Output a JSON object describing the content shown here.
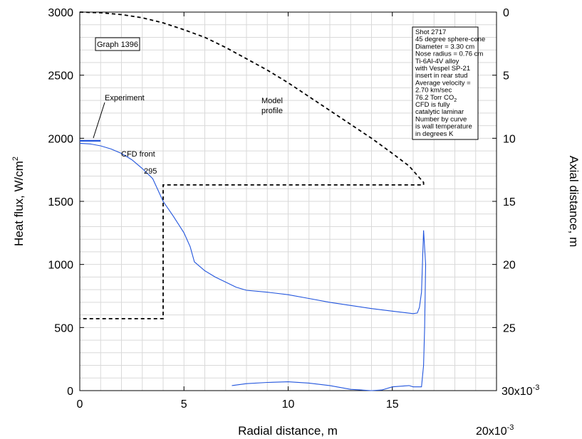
{
  "chart_data": {
    "type": "line",
    "graph_label": "Graph 1396",
    "xlabel": "Radial distance, m",
    "ylabel_left": "Heat flux, W/cm",
    "ylabel_left_sup": "2",
    "ylabel_right": "Axial distance, m",
    "x_multiplier": "20x10",
    "x_multiplier_exp": "-3",
    "y_right_multiplier": "30x10",
    "y_right_multiplier_exp": "-3",
    "xlim": [
      0,
      0.02
    ],
    "ylim_left": [
      0,
      3000
    ],
    "ylim_right": [
      0.03,
      0
    ],
    "x_ticks": [
      {
        "v": 0,
        "label": "0"
      },
      {
        "v": 0.005,
        "label": "5"
      },
      {
        "v": 0.01,
        "label": "10"
      },
      {
        "v": 0.015,
        "label": "15"
      }
    ],
    "y_left_ticks": [
      {
        "v": 0,
        "label": "0"
      },
      {
        "v": 500,
        "label": "500"
      },
      {
        "v": 1000,
        "label": "1000"
      },
      {
        "v": 1500,
        "label": "1500"
      },
      {
        "v": 2000,
        "label": "2000"
      },
      {
        "v": 2500,
        "label": "2500"
      },
      {
        "v": 3000,
        "label": "3000"
      }
    ],
    "y_right_ticks": [
      {
        "v": 0,
        "label": "0"
      },
      {
        "v": 0.005,
        "label": "5"
      },
      {
        "v": 0.01,
        "label": "10"
      },
      {
        "v": 0.015,
        "label": "15"
      },
      {
        "v": 0.02,
        "label": "20"
      },
      {
        "v": 0.025,
        "label": "25"
      }
    ],
    "annotations": {
      "experiment": "Experiment",
      "cfd_front": "CFD front",
      "wall_temp": "295",
      "model_line1": "Model",
      "model_line2": "profile"
    },
    "info_box": [
      "Shot 2717",
      "45 degree sphere-cone",
      "Diameter = 3.30 cm",
      "Nose radius = 0.76 cm",
      "Ti-6Al-4V alloy",
      "  with Vespel SP-21",
      "  insert in rear stud",
      "Average velocity =",
      "  2.70 km/sec",
      "76.2 Torr CO",
      "CFD is fully",
      "  catalytic laminar",
      "Number by curve",
      "  is wall temperature",
      "  in degrees K"
    ],
    "info_box_sub": "2",
    "colors": {
      "cfd": "#2255dd",
      "experiment": "#2255dd",
      "model": "#000000"
    },
    "series": [
      {
        "axis": "right",
        "style": "dashed",
        "points": [
          [
            0,
            0
          ],
          [
            0.001,
            5e-05
          ],
          [
            0.002,
            0.0002
          ],
          [
            0.003,
            0.00045
          ],
          [
            0.004,
            0.00085
          ],
          [
            0.005,
            0.0014
          ],
          [
            0.006,
            0.002
          ],
          [
            0.007,
            0.0028
          ],
          [
            0.008,
            0.0037
          ],
          [
            0.009,
            0.0046
          ],
          [
            0.01,
            0.0056
          ],
          [
            0.011,
            0.0067
          ],
          [
            0.012,
            0.0078
          ],
          [
            0.013,
            0.0089
          ],
          [
            0.014,
            0.01
          ],
          [
            0.015,
            0.0112
          ],
          [
            0.0158,
            0.0122
          ],
          [
            0.0165,
            0.0135
          ],
          [
            0.0165,
            0.0137
          ],
          [
            0.004,
            0.0137
          ],
          [
            0.004,
            0.0243
          ],
          [
            0,
            0.0243
          ]
        ]
      },
      {
        "axis": "left",
        "style": "solid",
        "points": [
          [
            0,
            1960
          ],
          [
            0.0005,
            1955
          ],
          [
            0.001,
            1940
          ],
          [
            0.0015,
            1915
          ],
          [
            0.002,
            1880
          ],
          [
            0.0025,
            1830
          ],
          [
            0.003,
            1760
          ],
          [
            0.0035,
            1680
          ],
          [
            0.004,
            1500
          ],
          [
            0.0045,
            1380
          ],
          [
            0.005,
            1250
          ],
          [
            0.0053,
            1140
          ],
          [
            0.0055,
            1020
          ],
          [
            0.006,
            950
          ],
          [
            0.0065,
            900
          ],
          [
            0.007,
            860
          ],
          [
            0.0075,
            820
          ],
          [
            0.008,
            795
          ],
          [
            0.009,
            780
          ],
          [
            0.01,
            760
          ],
          [
            0.011,
            730
          ],
          [
            0.012,
            700
          ],
          [
            0.013,
            675
          ],
          [
            0.014,
            650
          ],
          [
            0.015,
            630
          ],
          [
            0.016,
            610
          ],
          [
            0.0162,
            615
          ],
          [
            0.0163,
            660
          ],
          [
            0.0164,
            780
          ],
          [
            0.0165,
            1270
          ],
          [
            0.0166,
            1000
          ],
          [
            0.01655,
            500
          ],
          [
            0.0165,
            200
          ],
          [
            0.0164,
            30
          ],
          [
            0.016,
            30
          ],
          [
            0.0158,
            40
          ],
          [
            0.015,
            30
          ],
          [
            0.0145,
            5
          ],
          [
            0.014,
            0
          ],
          [
            0.013,
            10
          ],
          [
            0.012,
            40
          ],
          [
            0.011,
            60
          ],
          [
            0.01,
            70
          ],
          [
            0.009,
            65
          ],
          [
            0.008,
            55
          ],
          [
            0.0073,
            40
          ]
        ]
      },
      {
        "axis": "left",
        "style": "solid",
        "points": [
          [
            0,
            1980
          ],
          [
            0.001,
            1980
          ]
        ]
      }
    ]
  }
}
